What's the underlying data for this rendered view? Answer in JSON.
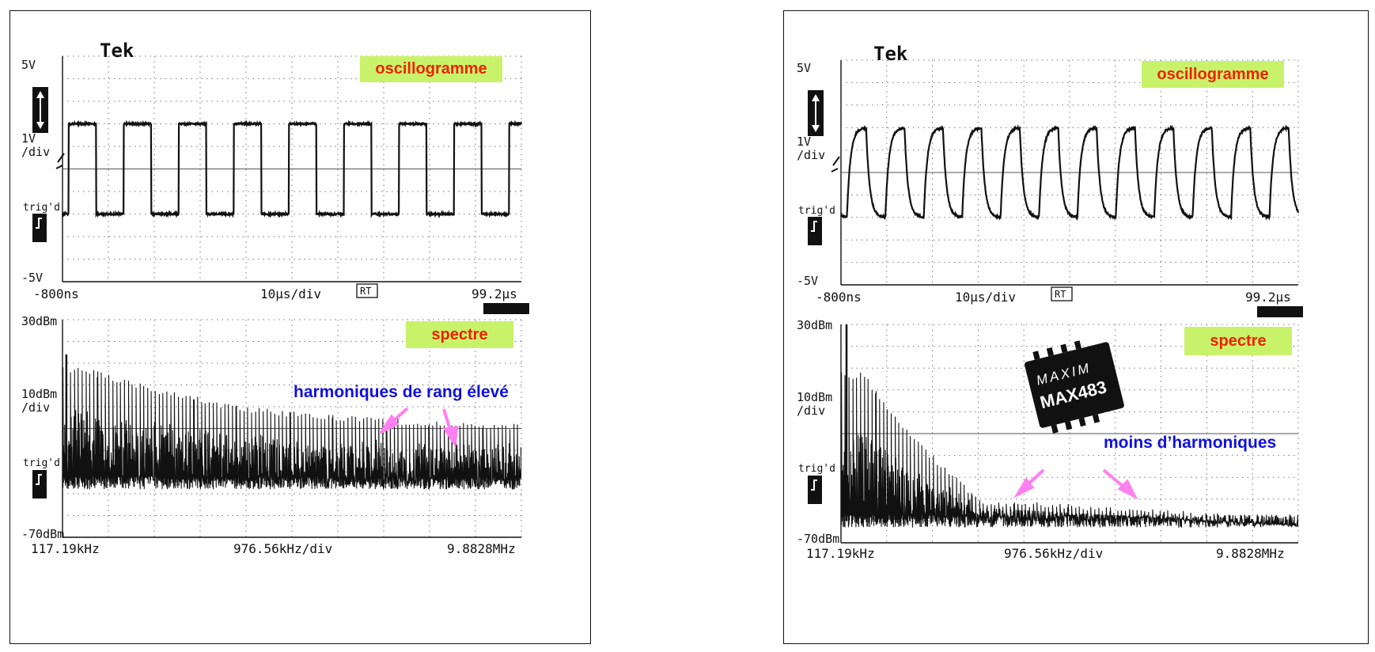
{
  "panels": [
    {
      "id": "left",
      "brand": "Tek",
      "osc": {
        "label": "oscillogramme",
        "y_top": "5V",
        "y_scale": "1V",
        "y_scale_unit": "/div",
        "y_bottom": "-5V",
        "trig": "trig'd",
        "x_start": "-800ns",
        "x_scale": "10µs/div",
        "x_mode": "RT",
        "x_end": "99.2µs"
      },
      "spec": {
        "label": "spectre",
        "y_top": "30dBm",
        "y_scale": "10dBm",
        "y_scale_unit": "/div",
        "y_bottom": "-70dBm",
        "trig": "trig'd",
        "x_start": "117.19kHz",
        "x_scale": "976.56kHz/div",
        "x_end": "9.8828MHz"
      },
      "annotation": "harmoniques de rang élevé"
    },
    {
      "id": "right",
      "brand": "Tek",
      "osc": {
        "label": "oscillogramme",
        "y_top": "5V",
        "y_scale": "1V",
        "y_scale_unit": "/div",
        "y_bottom": "-5V",
        "trig": "trig'd",
        "x_start": "-800ns",
        "x_scale": "10µs/div",
        "x_mode": "RT",
        "x_end": "99.2µs"
      },
      "spec": {
        "label": "spectre",
        "y_top": "30dBm",
        "y_scale": "10dBm",
        "y_scale_unit": "/div",
        "y_bottom": "-70dBm",
        "trig": "trig'd",
        "x_start": "117.19kHz",
        "x_scale": "976.56kHz/div",
        "x_end": "9.8828MHz"
      },
      "annotation": "moins d’harmoniques",
      "chip": {
        "brand": "MAXIM",
        "part": "MAX483"
      }
    }
  ],
  "chart_data": [
    {
      "type": "line",
      "panel": "left-oscillogramme",
      "waveform": "square",
      "xlim_us": [
        -0.8,
        99.2
      ],
      "ylim_V": [
        -5,
        5
      ],
      "high_V": 2.0,
      "low_V": -2.0,
      "period_us": 12.0,
      "cycles_shown": 8,
      "edges": "sharp"
    },
    {
      "type": "line",
      "panel": "left-spectre",
      "xlim_MHz": [
        0.11719,
        9.8828
      ],
      "ylim_dBm": [
        -70,
        30
      ],
      "fundamental_MHz": 0.083,
      "fundamental_dBm": 14,
      "harmonic_peaks_dBm": {
        "0.5MHz": 8,
        "2MHz": -1,
        "4MHz": -10,
        "6MHz": -14,
        "9.8MHz": -18
      },
      "noise_floor_dBm": -45
    },
    {
      "type": "line",
      "panel": "right-oscillogramme",
      "waveform": "slew-limited square",
      "xlim_us": [
        -0.8,
        99.2
      ],
      "ylim_V": [
        -5,
        5
      ],
      "high_V": 2.0,
      "low_V": -2.0,
      "period_us": 8.4,
      "cycles_shown": 12,
      "edges": "rounded"
    },
    {
      "type": "line",
      "panel": "right-spectre",
      "xlim_MHz": [
        0.11719,
        9.8828
      ],
      "ylim_dBm": [
        -70,
        30
      ],
      "fundamental_MHz": 0.12,
      "fundamental_dBm": 30,
      "harmonic_peaks_dBm": {
        "0.5MHz": 8,
        "1MHz": -8,
        "2MHz": -30,
        "3MHz": -50,
        "9.8MHz": -58
      },
      "noise_floor_dBm": -60
    }
  ]
}
